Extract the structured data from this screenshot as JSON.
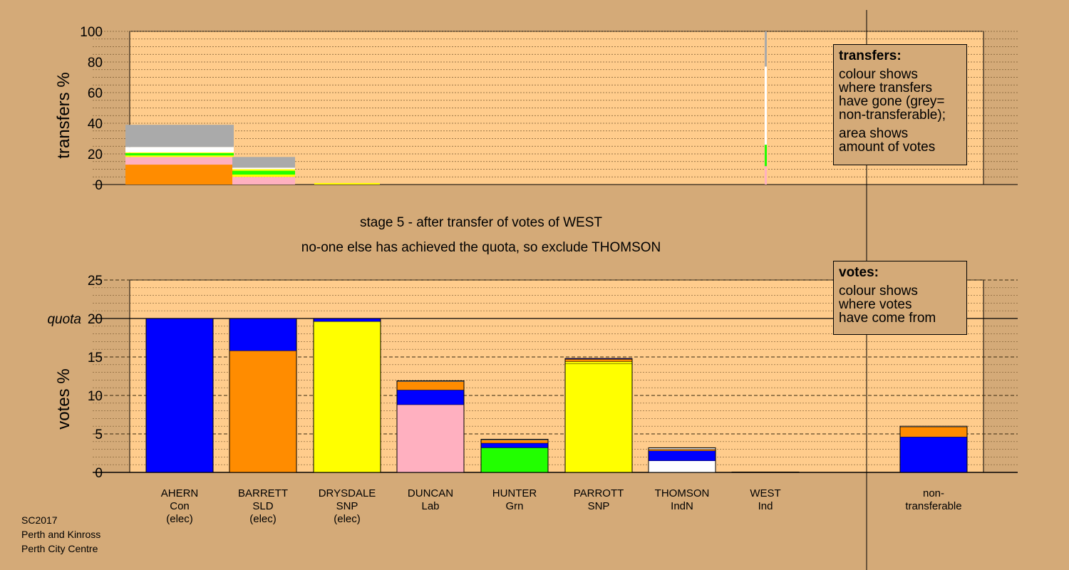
{
  "colors": {
    "background": "#d4aa78",
    "panel": "#ffcc8c",
    "AHERN": "#0000ff",
    "BARRETT": "#ff8c00",
    "DRYSDALE": "#ffff00",
    "DUNCAN": "#ffb0c0",
    "HUNTER": "#22ff00",
    "PARROTT": "#ffff00",
    "THOMSON": "#ffffff",
    "WEST": "#e8e8e8",
    "non-transferable": "#aaaaaa"
  },
  "headline": {
    "stage": "stage 5 - after transfer of votes of WEST",
    "action": "no-one else has achieved the quota, so exclude THOMSON"
  },
  "transfers_legend": {
    "title": "transfers:",
    "lines": [
      "colour shows",
      "where transfers",
      "have gone (grey=",
      "non-transferable);"
    ],
    "lines2": [
      "area shows",
      "amount of votes"
    ]
  },
  "votes_legend": {
    "title": "votes:",
    "lines": [
      "colour shows",
      "where votes",
      "have come from"
    ]
  },
  "footer": {
    "line1": "SC2017",
    "line2": "Perth and Kinross",
    "line3": "Perth City Centre"
  },
  "chart_data": [
    {
      "type": "bar",
      "stacked": true,
      "ylabel": "transfers %",
      "ylim": [
        0,
        100
      ],
      "yticks": [
        0,
        20,
        40,
        60,
        80,
        100
      ],
      "grid": true,
      "description_free": true,
      "bars": [
        {
          "from": "AHERN",
          "value": 39,
          "segments": [
            {
              "to": "BARRETT",
              "value": 13
            },
            {
              "to": "DUNCAN",
              "value": 5
            },
            {
              "to": "DRYSDALE",
              "value": 1
            },
            {
              "to": "HUNTER",
              "value": 1.5
            },
            {
              "to": "PARROTT",
              "value": 0.5
            },
            {
              "to": "THOMSON",
              "value": 3.5
            },
            {
              "to": "non-transferable",
              "value": 14.5
            }
          ]
        },
        {
          "from": "BARRETT",
          "value": 18,
          "segments": [
            {
              "to": "DUNCAN",
              "value": 5
            },
            {
              "to": "PARROTT",
              "value": 1.5
            },
            {
              "to": "HUNTER",
              "value": 2.5
            },
            {
              "to": "DRYSDALE",
              "value": 1
            },
            {
              "to": "THOMSON",
              "value": 1
            },
            {
              "to": "non-transferable",
              "value": 7
            }
          ]
        },
        {
          "from": "DRYSDALE",
          "value": 1,
          "segments": [
            {
              "to": "PARROTT",
              "value": 1
            }
          ]
        },
        {
          "from": "WEST",
          "value": 100,
          "segments": [
            {
              "to": "DUNCAN",
              "value": 12
            },
            {
              "to": "HUNTER",
              "value": 14
            },
            {
              "to": "THOMSON",
              "value": 51
            },
            {
              "to": "non-transferable",
              "value": 23
            }
          ]
        }
      ]
    },
    {
      "type": "bar",
      "stacked": true,
      "ylabel": "votes %",
      "ylim": [
        0,
        25
      ],
      "yticks": [
        0,
        5,
        10,
        15,
        20,
        25
      ],
      "quota": 20,
      "quota_label": "quota",
      "grid": true,
      "categories": [
        {
          "name": "AHERN",
          "party": "Con",
          "status": "(elec)",
          "segments": [
            {
              "from": "AHERN",
              "value": 20
            }
          ]
        },
        {
          "name": "BARRETT",
          "party": "SLD",
          "status": "(elec)",
          "segments": [
            {
              "from": "BARRETT",
              "value": 15.8
            },
            {
              "from": "AHERN",
              "value": 4.2
            }
          ]
        },
        {
          "name": "DRYSDALE",
          "party": "SNP",
          "status": "(elec)",
          "segments": [
            {
              "from": "DRYSDALE",
              "value": 19.6
            },
            {
              "from": "AHERN",
              "value": 0.4
            }
          ]
        },
        {
          "name": "DUNCAN",
          "party": "Lab",
          "status": "",
          "segments": [
            {
              "from": "DUNCAN",
              "value": 8.8
            },
            {
              "from": "AHERN",
              "value": 1.9
            },
            {
              "from": "BARRETT",
              "value": 1.1
            },
            {
              "from": "WEST",
              "value": 0.1
            }
          ]
        },
        {
          "name": "HUNTER",
          "party": "Grn",
          "status": "",
          "segments": [
            {
              "from": "HUNTER",
              "value": 3.2
            },
            {
              "from": "AHERN",
              "value": 0.6
            },
            {
              "from": "BARRETT",
              "value": 0.4
            },
            {
              "from": "WEST",
              "value": 0.1
            }
          ]
        },
        {
          "name": "PARROTT",
          "party": "SNP",
          "status": "",
          "segments": [
            {
              "from": "PARROTT",
              "value": 14.1
            },
            {
              "from": "DRYSDALE",
              "value": 0.3
            },
            {
              "from": "BARRETT",
              "value": 0.3
            },
            {
              "from": "AHERN",
              "value": 0.1
            }
          ]
        },
        {
          "name": "THOMSON",
          "party": "IndN",
          "status": "",
          "segments": [
            {
              "from": "THOMSON",
              "value": 1.5
            },
            {
              "from": "AHERN",
              "value": 1.3
            },
            {
              "from": "BARRETT",
              "value": 0.2
            },
            {
              "from": "WEST",
              "value": 0.2
            }
          ]
        },
        {
          "name": "WEST",
          "party": "Ind",
          "status": "",
          "segments": [
            {
              "from": "WEST",
              "value": 0.05
            }
          ]
        },
        {
          "name": "non-",
          "party": "transferable",
          "status": "",
          "segments": [
            {
              "from": "AHERN",
              "value": 4.6
            },
            {
              "from": "BARRETT",
              "value": 1.3
            },
            {
              "from": "WEST",
              "value": 0.1
            }
          ]
        }
      ]
    }
  ]
}
